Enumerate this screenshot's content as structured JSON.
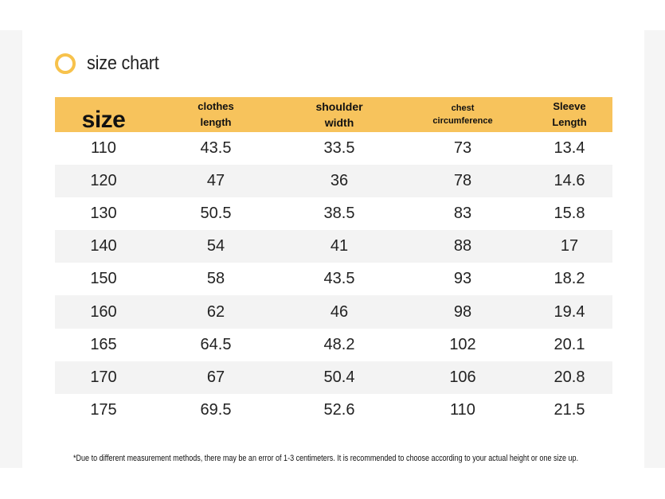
{
  "title": "size chart",
  "colors": {
    "accent": "#f7c35c",
    "ring": "#f7c24c",
    "alt_row": "#f3f3f3"
  },
  "headers": {
    "size": "size",
    "clothes_length": [
      "clothes",
      "length"
    ],
    "shoulder_width": [
      "shoulder",
      "width"
    ],
    "chest_circumference": [
      "chest",
      "circumference"
    ],
    "sleeve_length": [
      "Sleeve",
      "Length"
    ]
  },
  "rows": [
    [
      "110",
      "43.5",
      "33.5",
      "73",
      "13.4"
    ],
    [
      "120",
      "47",
      "36",
      "78",
      "14.6"
    ],
    [
      "130",
      "50.5",
      "38.5",
      "83",
      "15.8"
    ],
    [
      "140",
      "54",
      "41",
      "88",
      "17"
    ],
    [
      "150",
      "58",
      "43.5",
      "93",
      "18.2"
    ],
    [
      "160",
      "62",
      "46",
      "98",
      "19.4"
    ],
    [
      "165",
      "64.5",
      "48.2",
      "102",
      "20.1"
    ],
    [
      "170",
      "67",
      "50.4",
      "106",
      "20.8"
    ],
    [
      "175",
      "69.5",
      "52.6",
      "110",
      "21.5"
    ]
  ],
  "footnote": "*Due to different measurement methods, there may be an error of 1-3 centimeters. It is recommended to choose according to your actual height or one size up."
}
